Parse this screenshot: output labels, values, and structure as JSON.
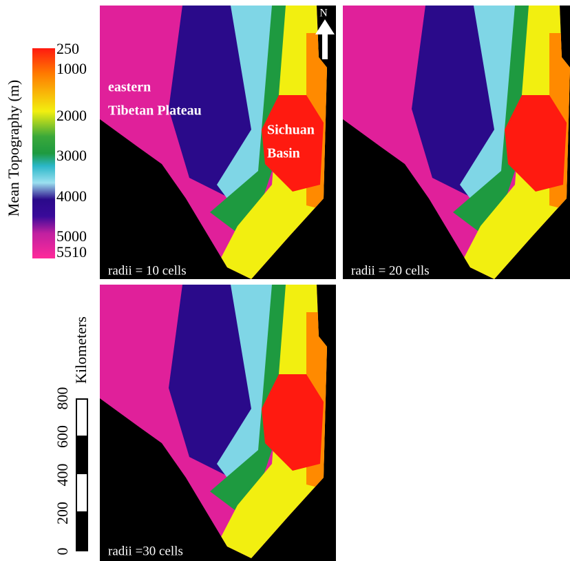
{
  "colorbar": {
    "title": "Mean Topography (m)",
    "labels": [
      250,
      1000,
      2000,
      3000,
      4000,
      5000,
      5510
    ]
  },
  "map_labels": {
    "region_1": [
      "eastern",
      "Tibetan Plateau"
    ],
    "region_2": [
      "Sichuan",
      "Basin"
    ],
    "north": "N"
  },
  "panels": [
    "radii = 10 cells",
    "radii = 20 cells",
    "radii =30 cells"
  ],
  "scale_bar": {
    "title": "Kilometers",
    "labels": [
      0,
      200,
      400,
      600,
      800
    ]
  }
}
